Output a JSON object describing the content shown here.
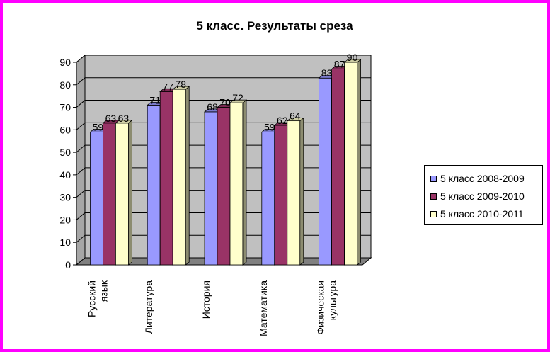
{
  "chart_data": {
    "type": "bar",
    "title": "5 класс. Результаты среза",
    "categories": [
      "Русский язык",
      "Литература",
      "История",
      "Математика",
      "Физическая культура"
    ],
    "category_lines": [
      [
        "Русский",
        "язык"
      ],
      [
        "Литература"
      ],
      [
        "История"
      ],
      [
        "Математика"
      ],
      [
        "Физическая",
        "культура"
      ]
    ],
    "series": [
      {
        "name": "5 класс 2008-2009",
        "values": [
          59,
          71,
          68,
          59,
          83
        ],
        "color": "#9999ff"
      },
      {
        "name": "5 класс 2009-2010",
        "values": [
          63,
          77,
          70,
          62,
          87
        ],
        "color": "#993366"
      },
      {
        "name": "5 класс 2010-2011",
        "values": [
          63,
          78,
          72,
          64,
          90
        ],
        "color": "#ffffcc"
      }
    ],
    "ylim": [
      0,
      90
    ],
    "yticks": [
      0,
      10,
      20,
      30,
      40,
      50,
      60,
      70,
      80,
      90
    ],
    "xlabel": "",
    "ylabel": "",
    "grid": true,
    "legend": "right",
    "frame_color": "#ff00ff",
    "wall_color": "#c0c0c0",
    "floor_color": "#808080"
  }
}
